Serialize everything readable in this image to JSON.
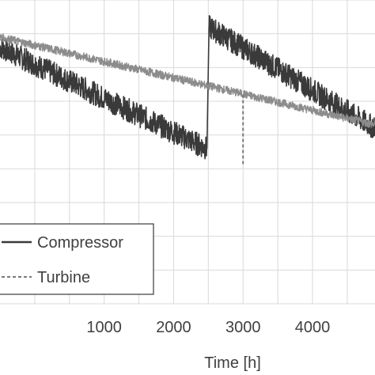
{
  "chart_data": {
    "type": "line",
    "title": "",
    "xlabel": "Time [h]",
    "ylabel": "",
    "xlim": [
      -500,
      4900
    ],
    "ylim": [
      0,
      9
    ],
    "x_ticks": [
      1000,
      2000,
      3000,
      4000
    ],
    "x_tick_labels": [
      "1000",
      "2000",
      "3000",
      "4000"
    ],
    "y_ticks_shown_as_gridlines_only": true,
    "grid": true,
    "legend_position": "lower-left",
    "series": [
      {
        "name": "Compressor",
        "color": "#3a3a3a",
        "line_style": "solid",
        "noisy": true,
        "segments": [
          {
            "x": [
              -500,
              2480
            ],
            "y": [
              7.6,
              4.6
            ]
          },
          {
            "x": [
              2480,
              2510
            ],
            "y": [
              4.6,
              8.2
            ]
          },
          {
            "x": [
              2510,
              4900
            ],
            "y": [
              8.2,
              5.2
            ]
          }
        ]
      },
      {
        "name": "Turbine",
        "color": "#8c8c8c",
        "line_style": "dashed",
        "noisy": true,
        "segments": [
          {
            "x": [
              -500,
              4900
            ],
            "y": [
              7.9,
              5.3
            ]
          }
        ],
        "dip": {
          "x": 3000,
          "y_from": 6.2,
          "y_to": 4.1
        }
      }
    ]
  }
}
